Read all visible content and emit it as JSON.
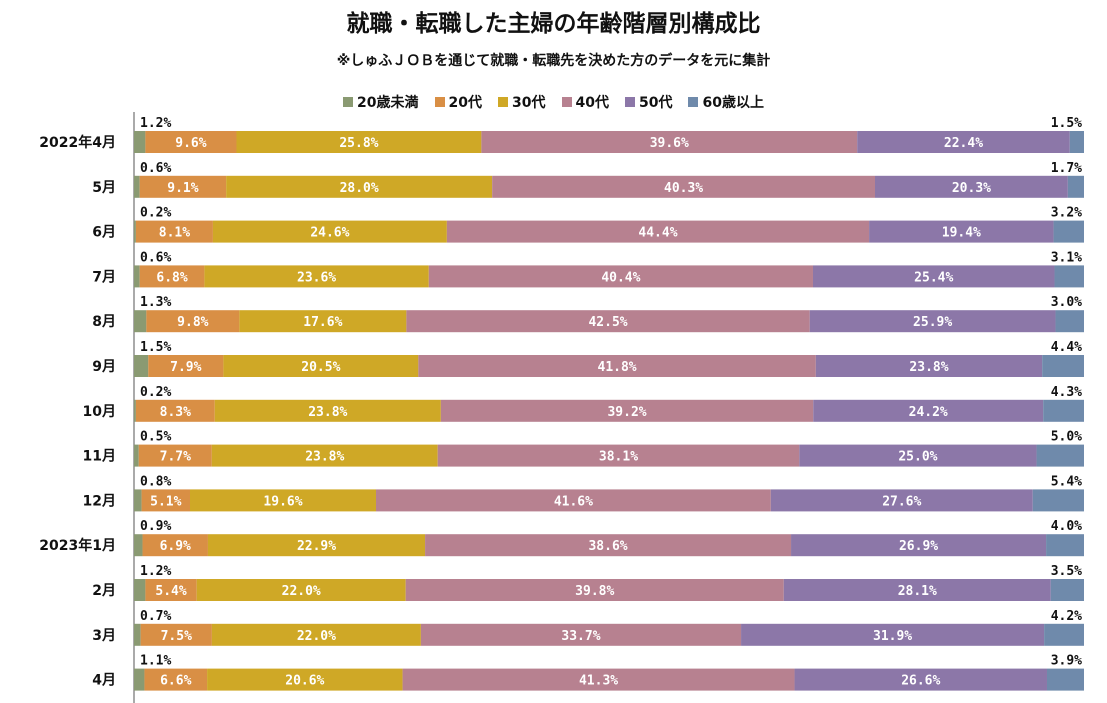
{
  "title": "就職・転職した主婦の年齢階層別構成比",
  "subtitle": "※しゅふＪＯＢを通じて就職・転職先を決めた方のデータを元に集計",
  "chart_data": {
    "type": "bar",
    "orientation": "horizontal",
    "stacked": true,
    "percent_stacked": true,
    "legend_position": "top",
    "grid": false,
    "xlim": [
      0,
      100
    ],
    "categories": [
      "2022年4月",
      "5月",
      "6月",
      "7月",
      "8月",
      "9月",
      "10月",
      "11月",
      "12月",
      "2023年1月",
      "2月",
      "3月",
      "4月"
    ],
    "series": [
      {
        "name": "20歳未満",
        "color": "#8a9a72",
        "values": [
          1.2,
          0.6,
          0.2,
          0.6,
          1.3,
          1.5,
          0.2,
          0.5,
          0.8,
          0.9,
          1.2,
          0.7,
          1.1
        ]
      },
      {
        "name": "20代",
        "color": "#d98f45",
        "values": [
          9.6,
          9.1,
          8.1,
          6.8,
          9.8,
          7.9,
          8.3,
          7.7,
          5.1,
          6.9,
          5.4,
          7.5,
          6.6
        ]
      },
      {
        "name": "30代",
        "color": "#cfa826",
        "values": [
          25.8,
          28.0,
          24.6,
          23.6,
          17.6,
          20.5,
          23.8,
          23.8,
          19.6,
          22.9,
          22.0,
          22.0,
          20.6
        ]
      },
      {
        "name": "40代",
        "color": "#b78190",
        "values": [
          39.6,
          40.3,
          44.4,
          40.4,
          42.5,
          41.8,
          39.2,
          38.1,
          41.6,
          38.6,
          39.8,
          33.7,
          41.3
        ]
      },
      {
        "name": "50代",
        "color": "#8c77a8",
        "values": [
          22.4,
          20.3,
          19.4,
          25.4,
          25.9,
          23.8,
          24.2,
          25.0,
          27.6,
          26.9,
          28.1,
          31.9,
          26.6
        ]
      },
      {
        "name": "60歳以上",
        "color": "#6f8aab",
        "values": [
          1.5,
          1.7,
          3.2,
          3.1,
          3.0,
          4.4,
          4.3,
          5.0,
          5.4,
          4.0,
          3.5,
          4.2,
          3.9
        ]
      }
    ],
    "value_labels": [
      [
        "1.2%",
        "9.6%",
        "25.8%",
        "39.6%",
        "22.4%",
        "1.5%"
      ],
      [
        "0.6%",
        "9.1%",
        "28.0%",
        "40.3%",
        "20.3%",
        "1.7%"
      ],
      [
        "0.2%",
        "8.1%",
        "24.6%",
        "44.4%",
        "19.4%",
        "3.2%"
      ],
      [
        "0.6%",
        "6.8%",
        "23.6%",
        "40.4%",
        "25.4%",
        "3.1%"
      ],
      [
        "1.3%",
        "9.8%",
        "17.6%",
        "42.5%",
        "25.9%",
        "3.0%"
      ],
      [
        "1.5%",
        "7.9%",
        "20.5%",
        "41.8%",
        "23.8%",
        "4.4%"
      ],
      [
        "0.2%",
        "8.3%",
        "23.8%",
        "39.2%",
        "24.2%",
        "4.3%"
      ],
      [
        "0.5%",
        "7.7%",
        "23.8%",
        "38.1%",
        "25.0%",
        "5.0%"
      ],
      [
        "0.8%",
        "5.1%",
        "19.6%",
        "41.6%",
        "27.6%",
        "5.4%"
      ],
      [
        "0.9%",
        "6.9%",
        "22.9%",
        "38.6%",
        "26.9%",
        "4.0%"
      ],
      [
        "1.2%",
        "5.4%",
        "22.0%",
        "39.8%",
        "28.1%",
        "3.5%"
      ],
      [
        "0.7%",
        "7.5%",
        "22.0%",
        "33.7%",
        "31.9%",
        "4.2%"
      ],
      [
        "1.1%",
        "6.6%",
        "20.6%",
        "41.3%",
        "26.6%",
        "3.9%"
      ]
    ]
  }
}
